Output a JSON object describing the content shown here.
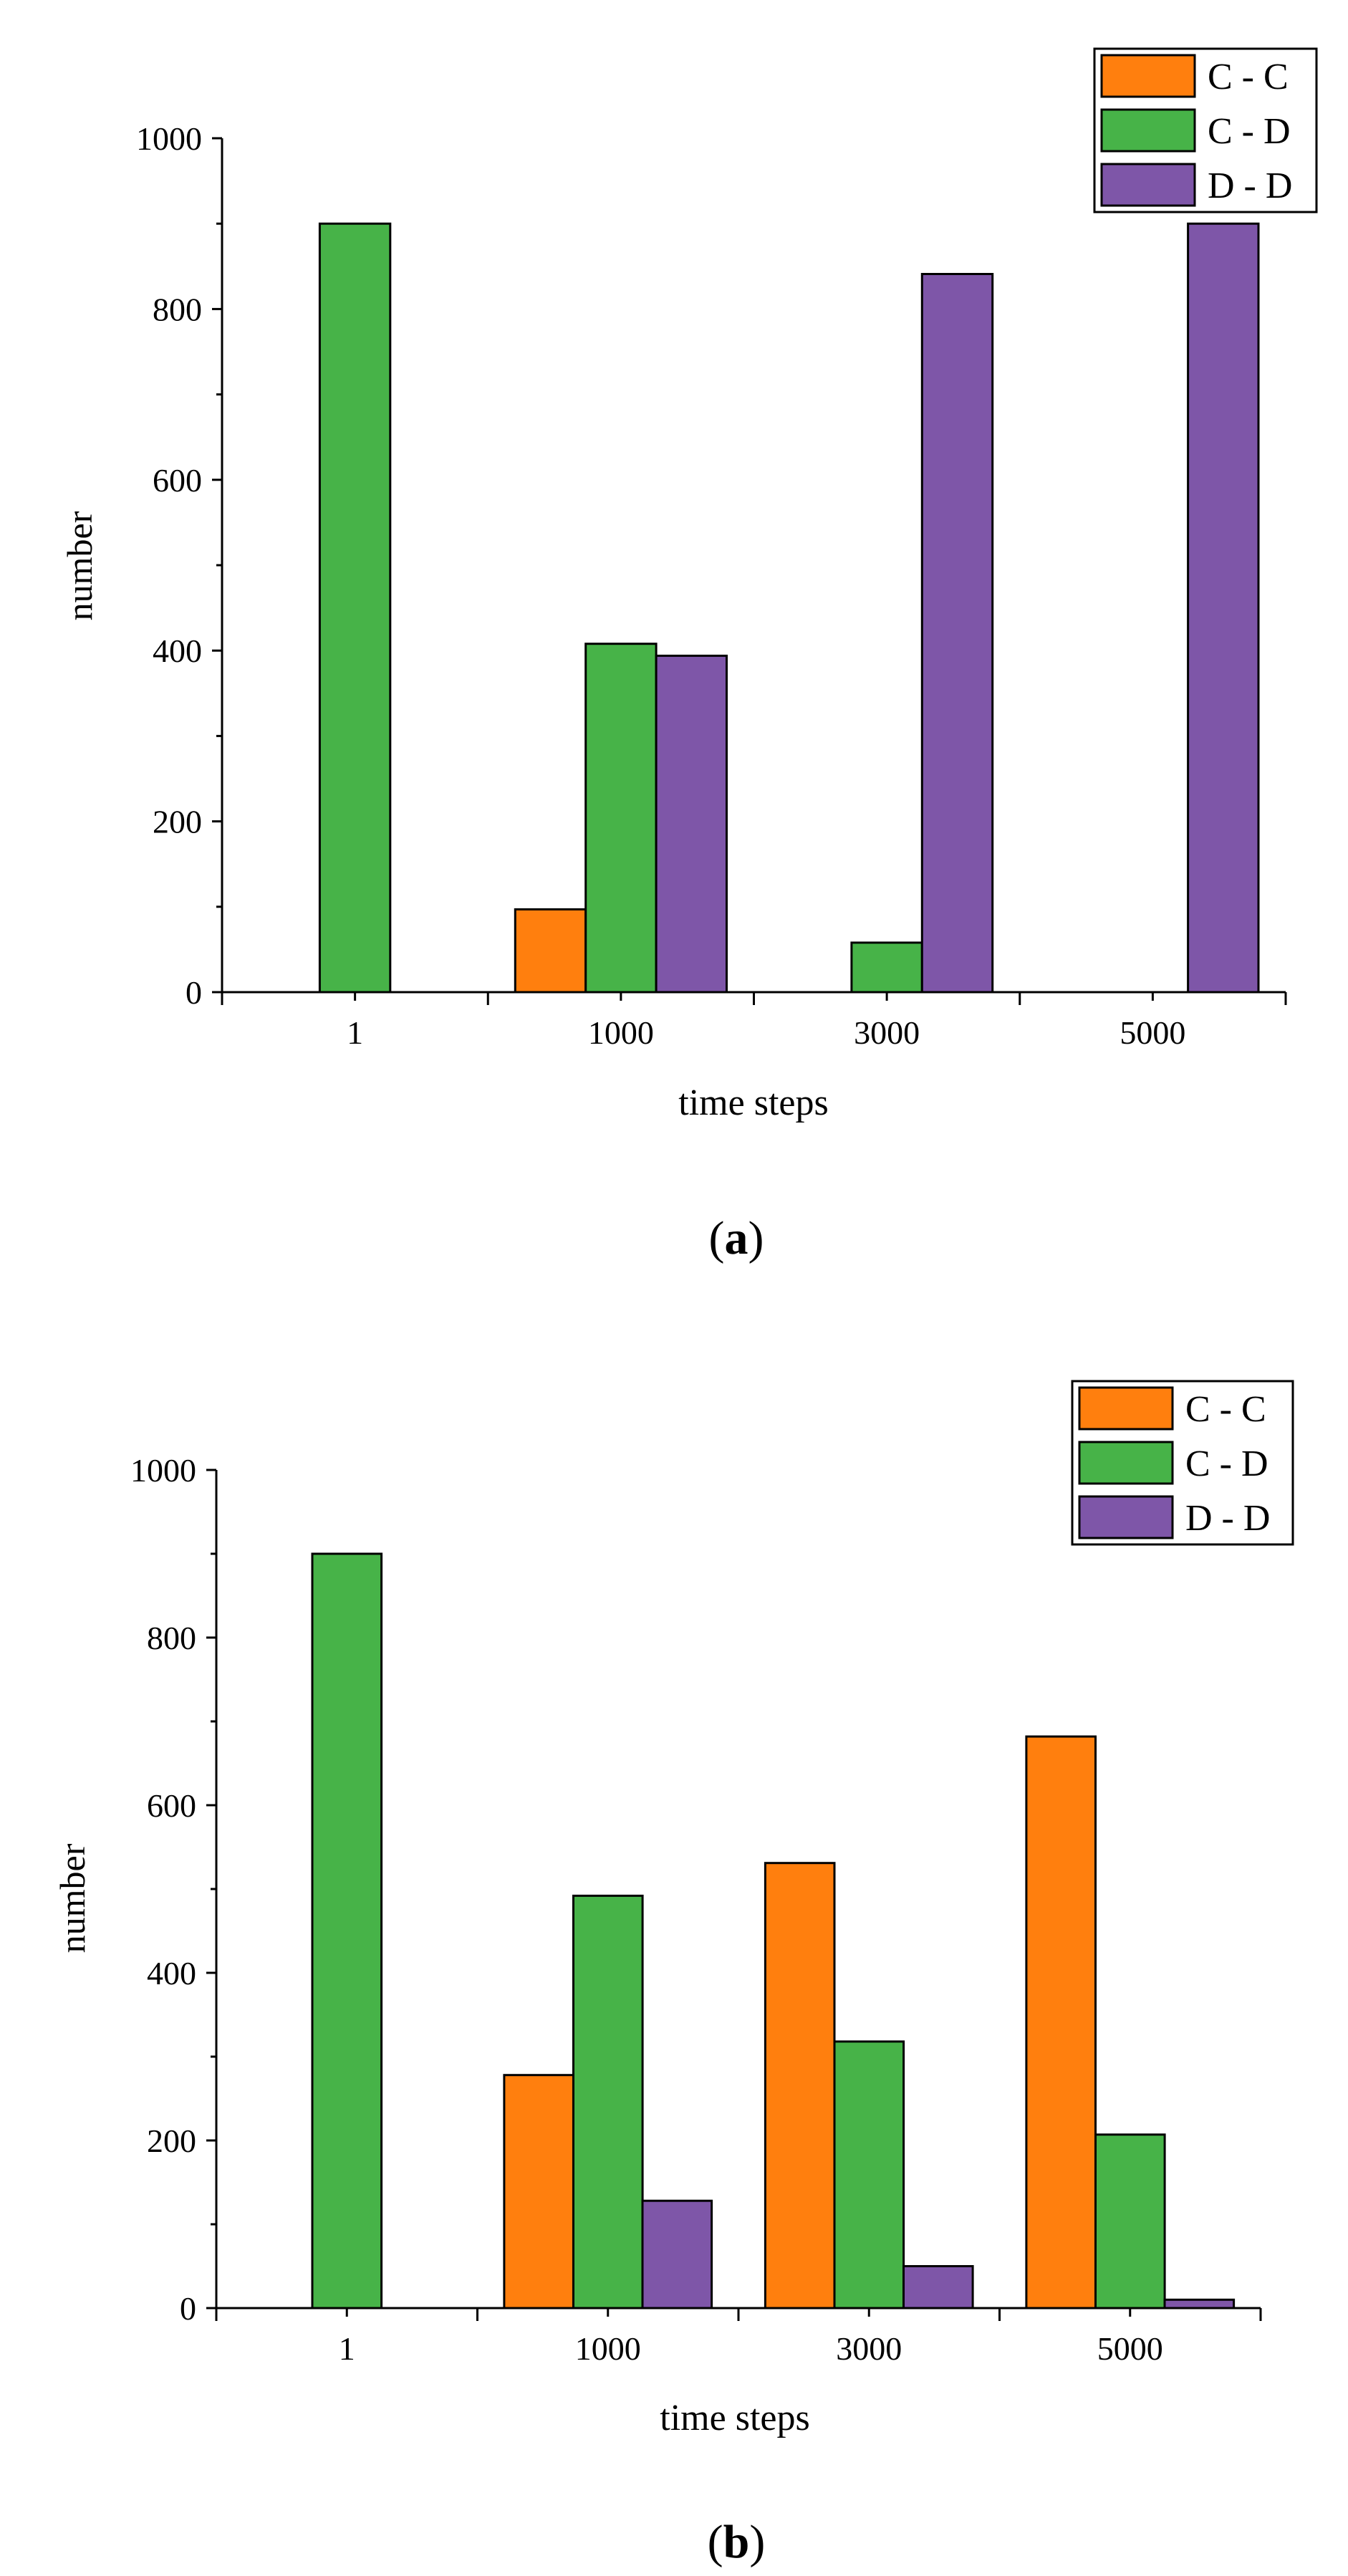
{
  "chart_data": [
    {
      "panel_label": "a",
      "type": "bar",
      "title": "",
      "xlabel": "time steps",
      "ylabel": "number",
      "ylim": [
        0,
        1000
      ],
      "yticks": [
        "0",
        "200",
        "400",
        "600",
        "800",
        "1000"
      ],
      "ytick_values": [
        0,
        200,
        400,
        600,
        800,
        1000
      ],
      "categories": [
        "1",
        "1000",
        "3000",
        "5000"
      ],
      "legend_position": "top-right",
      "grid": false,
      "series": [
        {
          "name": "C - C",
          "color": "#ff7f0e",
          "values": [
            0,
            97,
            0,
            0
          ]
        },
        {
          "name": "C - D",
          "color": "#47b348",
          "values": [
            900,
            408,
            58,
            0
          ]
        },
        {
          "name": "D - D",
          "color": "#7e56a8",
          "values": [
            0,
            394,
            841,
            900
          ]
        }
      ]
    },
    {
      "panel_label": "b",
      "type": "bar",
      "title": "",
      "xlabel": "time steps",
      "ylabel": "number",
      "ylim": [
        0,
        1000
      ],
      "yticks": [
        "0",
        "200",
        "400",
        "600",
        "800",
        "1000"
      ],
      "ytick_values": [
        0,
        200,
        400,
        600,
        800,
        1000
      ],
      "categories": [
        "1",
        "1000",
        "3000",
        "5000"
      ],
      "legend_position": "top-right",
      "grid": false,
      "series": [
        {
          "name": "C - C",
          "color": "#ff7f0e",
          "values": [
            0,
            278,
            531,
            682
          ]
        },
        {
          "name": "C - D",
          "color": "#47b348",
          "values": [
            900,
            492,
            318,
            207
          ]
        },
        {
          "name": "D - D",
          "color": "#7e56a8",
          "values": [
            0,
            128,
            50,
            10
          ]
        }
      ]
    }
  ]
}
